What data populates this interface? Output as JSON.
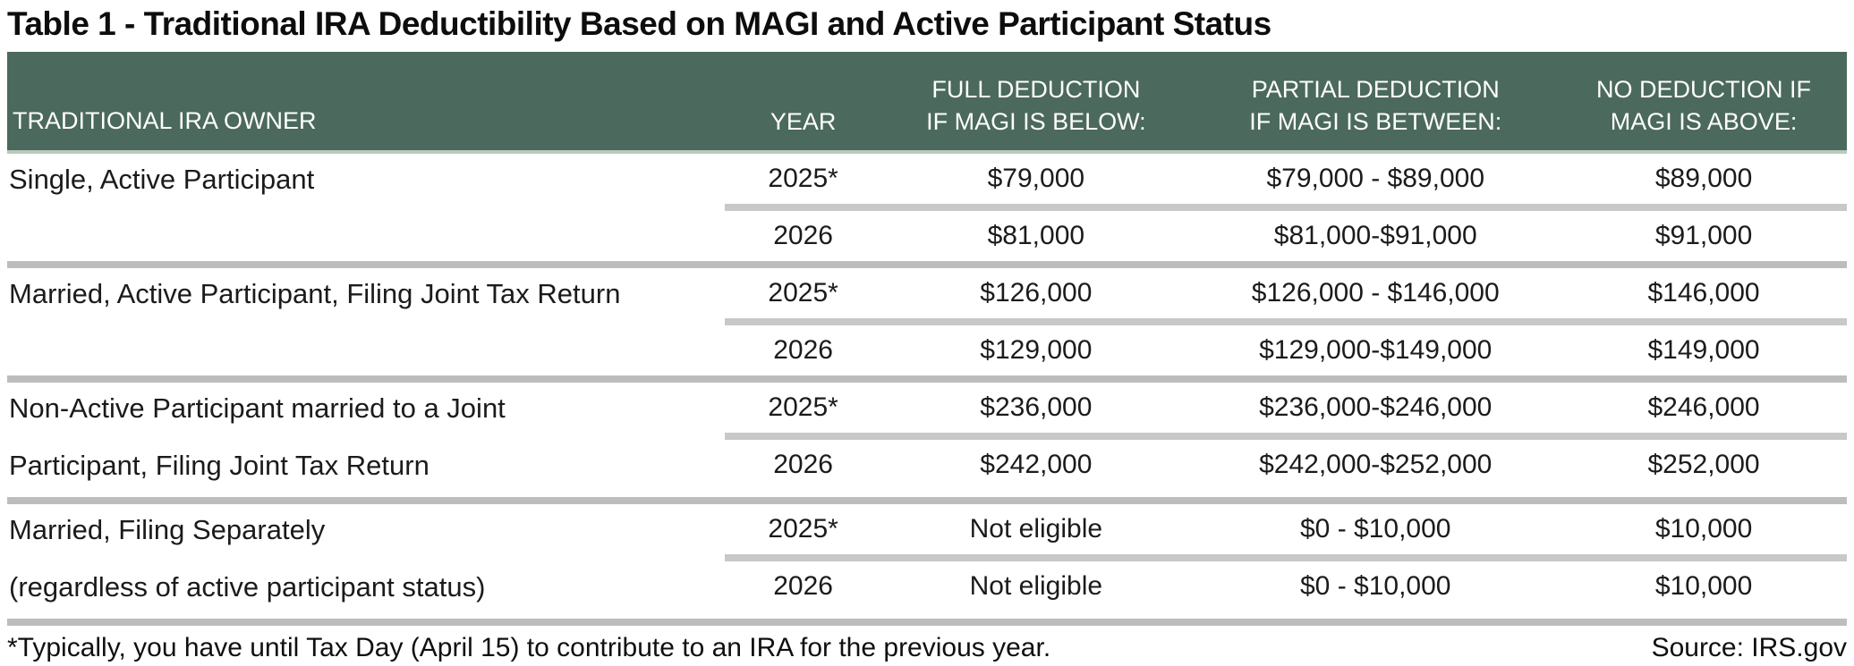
{
  "title": "Table 1 - Traditional IRA Deductibility Based on MAGI and Active Participant Status",
  "colors": {
    "header_bg": "#4b695c",
    "header_underline": "#b9cabc",
    "group_divider": "#bdbdbd",
    "row_divider": "#c8c8c8",
    "header_text": "#ffffff",
    "body_text": "#1b1b1b"
  },
  "table": {
    "headers": {
      "owner": "TRADITIONAL IRA OWNER",
      "year": "YEAR",
      "full_line1": "FULL DEDUCTION",
      "full_line2": "IF MAGI IS BELOW:",
      "partial_line1": "PARTIAL DEDUCTION",
      "partial_line2": "IF MAGI IS BETWEEN:",
      "no_line1": "NO DEDUCTION IF",
      "no_line2": "MAGI IS ABOVE:"
    },
    "groups": [
      {
        "owner_lines": [
          "Single, Active Participant"
        ],
        "rows": [
          {
            "year": "2025*",
            "full": "$79,000",
            "partial": "$79,000 - $89,000",
            "no": "$89,000"
          },
          {
            "year": "2026",
            "full": "$81,000",
            "partial": "$81,000-$91,000",
            "no": "$91,000"
          }
        ]
      },
      {
        "owner_lines": [
          "Married, Active Participant, Filing Joint Tax Return"
        ],
        "rows": [
          {
            "year": "2025*",
            "full": "$126,000",
            "partial": "$126,000 - $146,000",
            "no": "$146,000"
          },
          {
            "year": "2026",
            "full": "$129,000",
            "partial": "$129,000-$149,000",
            "no": "$149,000"
          }
        ]
      },
      {
        "owner_lines": [
          "Non-Active Participant married to a Joint",
          "Participant, Filing Joint Tax Return"
        ],
        "rows": [
          {
            "year": "2025*",
            "full": "$236,000",
            "partial": "$236,000-$246,000",
            "no": "$246,000"
          },
          {
            "year": "2026",
            "full": "$242,000",
            "partial": "$242,000-$252,000",
            "no": "$252,000"
          }
        ]
      },
      {
        "owner_lines": [
          "Married, Filing Separately",
          "(regardless of active participant status)"
        ],
        "rows": [
          {
            "year": "2025*",
            "full": "Not eligible",
            "partial": "$0 - $10,000",
            "no": "$10,000"
          },
          {
            "year": "2026",
            "full": "Not eligible",
            "partial": "$0 - $10,000",
            "no": "$10,000"
          }
        ]
      }
    ]
  },
  "footnote": "*Typically, you have until Tax Day (April 15) to contribute to an IRA for the previous year.",
  "source": "Source: IRS.gov"
}
